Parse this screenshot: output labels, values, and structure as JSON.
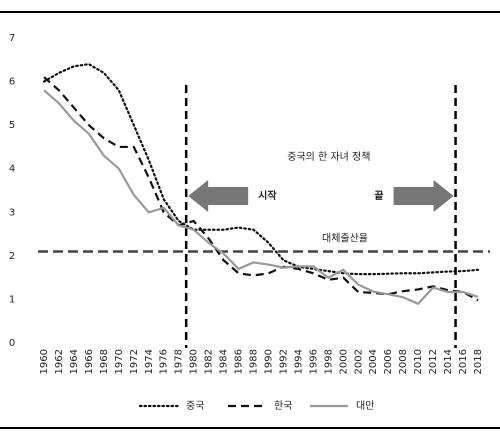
{
  "chart_data": {
    "type": "line",
    "x": [
      1960,
      1962,
      1964,
      1966,
      1968,
      1970,
      1972,
      1974,
      1976,
      1978,
      1980,
      1982,
      1984,
      1986,
      1988,
      1990,
      1992,
      1994,
      1996,
      1998,
      2000,
      2002,
      2004,
      2006,
      2008,
      2010,
      2012,
      2014,
      2016,
      2018
    ],
    "xlim": [
      1960,
      2018
    ],
    "xticks": [
      1960,
      1962,
      1964,
      1966,
      1968,
      1970,
      1972,
      1974,
      1976,
      1978,
      1980,
      1982,
      1984,
      1986,
      1988,
      1990,
      1992,
      1994,
      1996,
      1998,
      2000,
      2002,
      2004,
      2006,
      2008,
      2010,
      2012,
      2014,
      2016,
      2018
    ],
    "ylim": [
      0,
      7
    ],
    "yticks": [
      0,
      1,
      2,
      3,
      4,
      5,
      6,
      7
    ],
    "series": [
      {
        "name": "중국",
        "color": "#111111",
        "dash": "dotted",
        "values": [
          6.0,
          6.2,
          6.35,
          6.4,
          6.2,
          5.8,
          5.0,
          4.2,
          3.3,
          2.8,
          2.6,
          2.6,
          2.6,
          2.65,
          2.6,
          2.3,
          1.9,
          1.75,
          1.7,
          1.65,
          1.6,
          1.58,
          1.58,
          1.59,
          1.6,
          1.6,
          1.62,
          1.64,
          1.65,
          1.68
        ]
      },
      {
        "name": "한국",
        "color": "#111111",
        "dash": "dashed",
        "values": [
          6.1,
          5.8,
          5.4,
          5.0,
          4.7,
          4.5,
          4.5,
          3.8,
          3.0,
          2.7,
          2.8,
          2.4,
          1.9,
          1.6,
          1.55,
          1.6,
          1.75,
          1.7,
          1.6,
          1.45,
          1.5,
          1.17,
          1.15,
          1.12,
          1.19,
          1.23,
          1.3,
          1.21,
          1.17,
          0.98
        ]
      },
      {
        "name": "대만",
        "color": "#999999",
        "dash": "solid",
        "values": [
          5.8,
          5.5,
          5.1,
          4.8,
          4.3,
          4.0,
          3.4,
          3.0,
          3.1,
          2.7,
          2.6,
          2.3,
          2.05,
          1.7,
          1.85,
          1.8,
          1.73,
          1.76,
          1.76,
          1.5,
          1.68,
          1.34,
          1.18,
          1.12,
          1.05,
          0.9,
          1.27,
          1.17,
          1.17,
          1.06
        ]
      }
    ],
    "vlines": [
      1979,
      2015
    ],
    "hline": {
      "value": 2.1,
      "label": "대체출산율"
    },
    "annotations": {
      "policy": "중국의 한 자녀 정책",
      "start": "시작",
      "end": "끝"
    }
  }
}
